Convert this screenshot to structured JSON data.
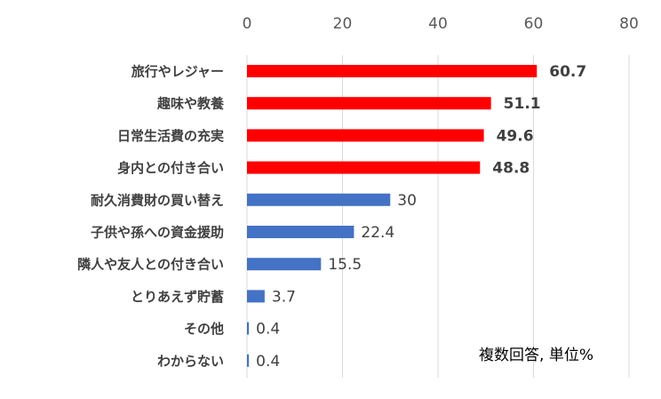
{
  "chart_data": {
    "type": "bar",
    "orientation": "horizontal",
    "categories": [
      "旅行やレジャー",
      "趣味や教養",
      "日常生活費の充実",
      "身内との付き合い",
      "耐久消費財の買い替え",
      "子供や孫への資金援助",
      "隣人や友人との付き合い",
      "とりあえず貯蓄",
      "その他",
      "わからない"
    ],
    "values": [
      60.7,
      51.1,
      49.6,
      48.8,
      30,
      22.4,
      15.5,
      3.7,
      0.4,
      0.4
    ],
    "value_labels": [
      "60.7",
      "51.1",
      "49.6",
      "48.8",
      "30",
      "22.4",
      "15.5",
      "3.7",
      "0.4",
      "0.4"
    ],
    "highlight_count": 4,
    "colors": {
      "highlight": "#ff0000",
      "normal": "#4472c4"
    },
    "xlim": [
      0,
      80
    ],
    "xticks": [
      0,
      20,
      40,
      60,
      80
    ],
    "x_axis_position": "top",
    "grid": true,
    "note": "複数回答, 単位%"
  }
}
